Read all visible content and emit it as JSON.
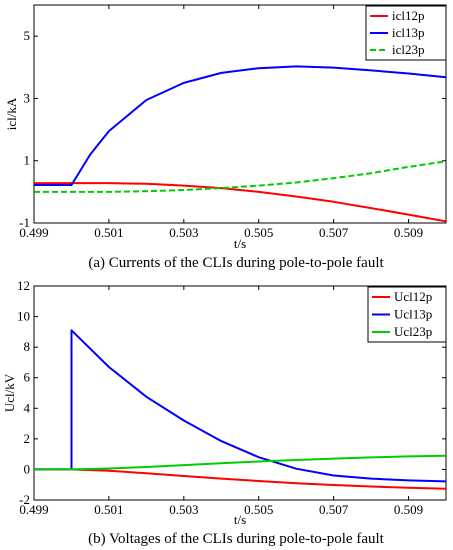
{
  "chart_data": [
    {
      "type": "line",
      "xlabel": "t/s",
      "ylabel": "icl/kA",
      "caption": "(a)  Currents of the CLIs during pole-to-pole fault",
      "xlim": [
        0.499,
        0.51
      ],
      "ylim": [
        -1,
        6
      ],
      "xticks": [
        0.499,
        0.501,
        0.503,
        0.505,
        0.507,
        0.509
      ],
      "xtick_labels": [
        "0.499",
        "0.501",
        "0.503",
        "0.505",
        "0.507",
        "0.509"
      ],
      "yticks": [
        -1,
        1,
        3,
        5
      ],
      "ytick_labels": [
        "-1",
        "1",
        "3",
        "5"
      ],
      "legend_position": "top-right",
      "series": [
        {
          "name": "icl12p",
          "color": "#ff0000",
          "dash": "",
          "x": [
            0.499,
            0.5,
            0.501,
            0.502,
            0.503,
            0.504,
            0.505,
            0.506,
            0.507,
            0.508,
            0.509,
            0.51
          ],
          "y": [
            0.28,
            0.28,
            0.28,
            0.26,
            0.2,
            0.12,
            0.0,
            -0.15,
            -0.32,
            -0.52,
            -0.73,
            -0.95
          ]
        },
        {
          "name": "icl13p",
          "color": "#0000ff",
          "dash": "",
          "x": [
            0.499,
            0.5,
            0.5005,
            0.501,
            0.502,
            0.503,
            0.504,
            0.505,
            0.506,
            0.507,
            0.508,
            0.509,
            0.51
          ],
          "y": [
            0.22,
            0.22,
            1.2,
            1.95,
            2.95,
            3.5,
            3.82,
            3.97,
            4.03,
            3.99,
            3.9,
            3.8,
            3.68
          ]
        },
        {
          "name": "icl23p",
          "color": "#00cc00",
          "dash": "6,3",
          "x": [
            0.499,
            0.5,
            0.501,
            0.502,
            0.503,
            0.504,
            0.505,
            0.506,
            0.507,
            0.508,
            0.509,
            0.51
          ],
          "y": [
            0.0,
            0.0,
            0.0,
            0.02,
            0.06,
            0.12,
            0.2,
            0.3,
            0.44,
            0.6,
            0.8,
            0.98
          ]
        }
      ]
    },
    {
      "type": "line",
      "xlabel": "t/s",
      "ylabel": "Ucl/kV",
      "caption": "(b)  Voltages of the CLIs during pole-to-pole fault",
      "xlim": [
        0.499,
        0.51
      ],
      "ylim": [
        -2,
        12
      ],
      "xticks": [
        0.499,
        0.501,
        0.503,
        0.505,
        0.507,
        0.509
      ],
      "xtick_labels": [
        "0.499",
        "0.501",
        "0.503",
        "0.505",
        "0.507",
        "0.509"
      ],
      "yticks": [
        -2,
        0,
        2,
        4,
        6,
        8,
        10,
        12
      ],
      "ytick_labels": [
        "-2",
        "0",
        "2",
        "4",
        "6",
        "8",
        "10",
        "12"
      ],
      "legend_position": "top-right",
      "series": [
        {
          "name": "Ucl12p",
          "color": "#ff0000",
          "dash": "",
          "x": [
            0.499,
            0.5,
            0.501,
            0.502,
            0.503,
            0.504,
            0.505,
            0.506,
            0.507,
            0.508,
            0.509,
            0.51
          ],
          "y": [
            0.0,
            0.0,
            -0.08,
            -0.25,
            -0.43,
            -0.6,
            -0.76,
            -0.9,
            -1.02,
            -1.12,
            -1.2,
            -1.27
          ]
        },
        {
          "name": "Ucl13p",
          "color": "#0000ff",
          "dash": "",
          "x": [
            0.499,
            0.5,
            0.5,
            0.501,
            0.502,
            0.503,
            0.504,
            0.505,
            0.506,
            0.507,
            0.508,
            0.509,
            0.51
          ],
          "y": [
            0.0,
            0.0,
            9.1,
            6.7,
            4.75,
            3.2,
            1.85,
            0.8,
            0.05,
            -0.4,
            -0.6,
            -0.72,
            -0.78
          ]
        },
        {
          "name": "Ucl23p",
          "color": "#00cc00",
          "dash": "",
          "x": [
            0.499,
            0.5,
            0.501,
            0.502,
            0.503,
            0.504,
            0.505,
            0.506,
            0.507,
            0.508,
            0.509,
            0.51
          ],
          "y": [
            0.0,
            0.0,
            0.06,
            0.16,
            0.28,
            0.4,
            0.52,
            0.62,
            0.71,
            0.79,
            0.85,
            0.89
          ]
        }
      ]
    }
  ]
}
